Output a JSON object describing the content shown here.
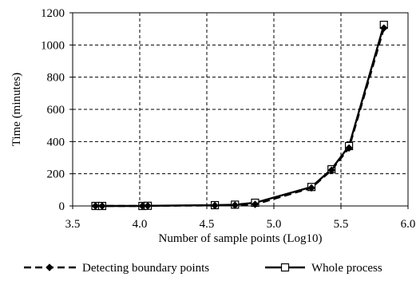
{
  "chart_data": {
    "type": "line",
    "xlabel": "Number of sample points (Log10)",
    "ylabel": "Time (minutes)",
    "xlim": [
      3.5,
      6.0
    ],
    "ylim": [
      0,
      1200
    ],
    "x_ticks": [
      "3.5",
      "4.0",
      "4.5",
      "5.0",
      "5.5",
      "6.0"
    ],
    "y_ticks": [
      "0",
      "200",
      "400",
      "600",
      "800",
      "1000",
      "1200"
    ],
    "grid": "dashed",
    "legend_position": "bottom",
    "series": [
      {
        "name": "Detecting boundary points",
        "style": "dashed",
        "marker": "diamond",
        "x": [
          3.67,
          3.72,
          4.02,
          4.06,
          4.56,
          4.71,
          4.86,
          5.28,
          5.43,
          5.56,
          5.82
        ],
        "y": [
          0,
          0,
          0,
          1,
          3,
          5,
          10,
          112,
          222,
          360,
          1105
        ]
      },
      {
        "name": "Whole process",
        "style": "solid",
        "marker": "square",
        "x": [
          3.67,
          3.72,
          4.02,
          4.06,
          4.56,
          4.71,
          4.86,
          5.28,
          5.43,
          5.56,
          5.82
        ],
        "y": [
          0,
          0,
          0,
          1,
          5,
          8,
          20,
          118,
          228,
          372,
          1125
        ]
      }
    ]
  }
}
